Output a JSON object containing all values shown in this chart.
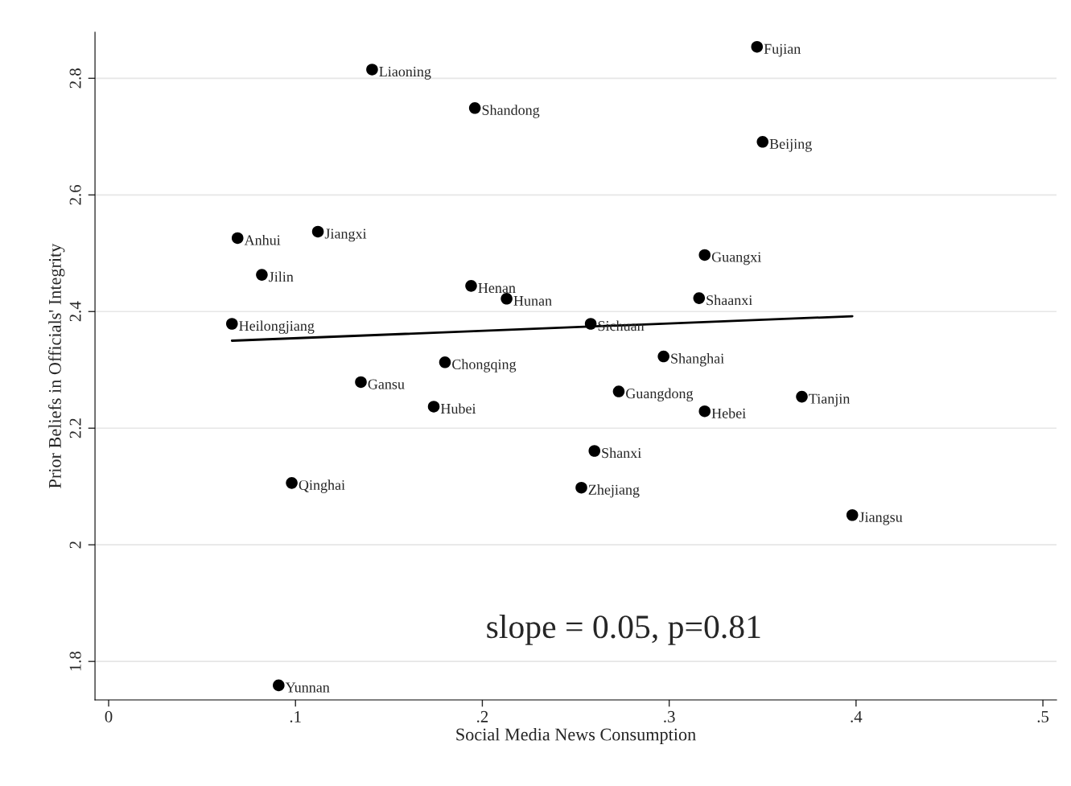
{
  "chart_data": {
    "type": "scatter",
    "xlabel": "Social Media News Consumption",
    "ylabel": "Prior Beliefs in Officials' Integrity",
    "xlim": [
      -0.0073,
      0.5073
    ],
    "ylim": [
      1.734,
      2.879
    ],
    "xticks": [
      0,
      {
        "value": 0.1,
        "label": ".1"
      },
      {
        "value": 0.2,
        "label": ".2"
      },
      {
        "value": 0.3,
        "label": ".3"
      },
      {
        "value": 0.4,
        "label": ".4"
      },
      {
        "value": 0.5,
        "label": ".5"
      }
    ],
    "yticks": [
      1.8,
      2,
      2.2,
      2.4,
      2.6,
      2.8
    ],
    "grid": "y",
    "legend": false,
    "marker": "circle",
    "annotations": [
      "slope = 0.05, p=0.81"
    ],
    "series": [
      {
        "name": "Fujian",
        "color": "#000000",
        "x": [
          0.347
        ],
        "values": [
          2.854
        ]
      },
      {
        "name": "Liaoning",
        "color": "#000000",
        "x": [
          0.141
        ],
        "values": [
          2.815
        ]
      },
      {
        "name": "Shandong",
        "color": "#000000",
        "x": [
          0.196
        ],
        "values": [
          2.749
        ]
      },
      {
        "name": "Beijing",
        "color": "#000000",
        "x": [
          0.35
        ],
        "values": [
          2.691
        ]
      },
      {
        "name": "Anhui",
        "color": "#000000",
        "x": [
          0.069
        ],
        "values": [
          2.526
        ]
      },
      {
        "name": "Jiangxi",
        "color": "#000000",
        "x": [
          0.112
        ],
        "values": [
          2.537
        ]
      },
      {
        "name": "Guangxi",
        "color": "#000000",
        "x": [
          0.319
        ],
        "values": [
          2.497
        ]
      },
      {
        "name": "Jilin",
        "color": "#000000",
        "x": [
          0.082
        ],
        "values": [
          2.463
        ]
      },
      {
        "name": "Henan",
        "color": "#000000",
        "x": [
          0.194
        ],
        "values": [
          2.444
        ]
      },
      {
        "name": "Hunan",
        "color": "#000000",
        "x": [
          0.213
        ],
        "values": [
          2.422
        ]
      },
      {
        "name": "Shaanxi",
        "color": "#000000",
        "x": [
          0.316
        ],
        "values": [
          2.423
        ]
      },
      {
        "name": "Heilongjiang",
        "color": "#000000",
        "x": [
          0.066
        ],
        "values": [
          2.379
        ]
      },
      {
        "name": "Sichuan",
        "color": "#000000",
        "x": [
          0.258
        ],
        "values": [
          2.379
        ]
      },
      {
        "name": "Shanghai",
        "color": "#000000",
        "x": [
          0.297
        ],
        "values": [
          2.323
        ]
      },
      {
        "name": "Chongqing",
        "color": "#000000",
        "x": [
          0.18
        ],
        "values": [
          2.313
        ]
      },
      {
        "name": "Gansu",
        "color": "#000000",
        "x": [
          0.135
        ],
        "values": [
          2.279
        ]
      },
      {
        "name": "Hubei",
        "color": "#000000",
        "x": [
          0.174
        ],
        "values": [
          2.237
        ]
      },
      {
        "name": "Guangdong",
        "color": "#000000",
        "x": [
          0.273
        ],
        "values": [
          2.263
        ]
      },
      {
        "name": "Tianjin",
        "color": "#000000",
        "x": [
          0.371
        ],
        "values": [
          2.254
        ]
      },
      {
        "name": "Hebei",
        "color": "#000000",
        "x": [
          0.319
        ],
        "values": [
          2.229
        ]
      },
      {
        "name": "Shanxi",
        "color": "#000000",
        "x": [
          0.26
        ],
        "values": [
          2.161
        ]
      },
      {
        "name": "Qinghai",
        "color": "#000000",
        "x": [
          0.098
        ],
        "values": [
          2.106
        ]
      },
      {
        "name": "Zhejiang",
        "color": "#000000",
        "x": [
          0.253
        ],
        "values": [
          2.098
        ]
      },
      {
        "name": "Jiangsu",
        "color": "#000000",
        "x": [
          0.398
        ],
        "values": [
          2.051
        ]
      },
      {
        "name": "Yunnan",
        "color": "#000000",
        "x": [
          0.091
        ],
        "values": [
          1.759
        ]
      },
      {
        "type": "line",
        "color": "#000000",
        "x": [
          0.066,
          0.398
        ],
        "values": [
          2.35,
          2.392
        ],
        "marker": "none"
      }
    ]
  }
}
